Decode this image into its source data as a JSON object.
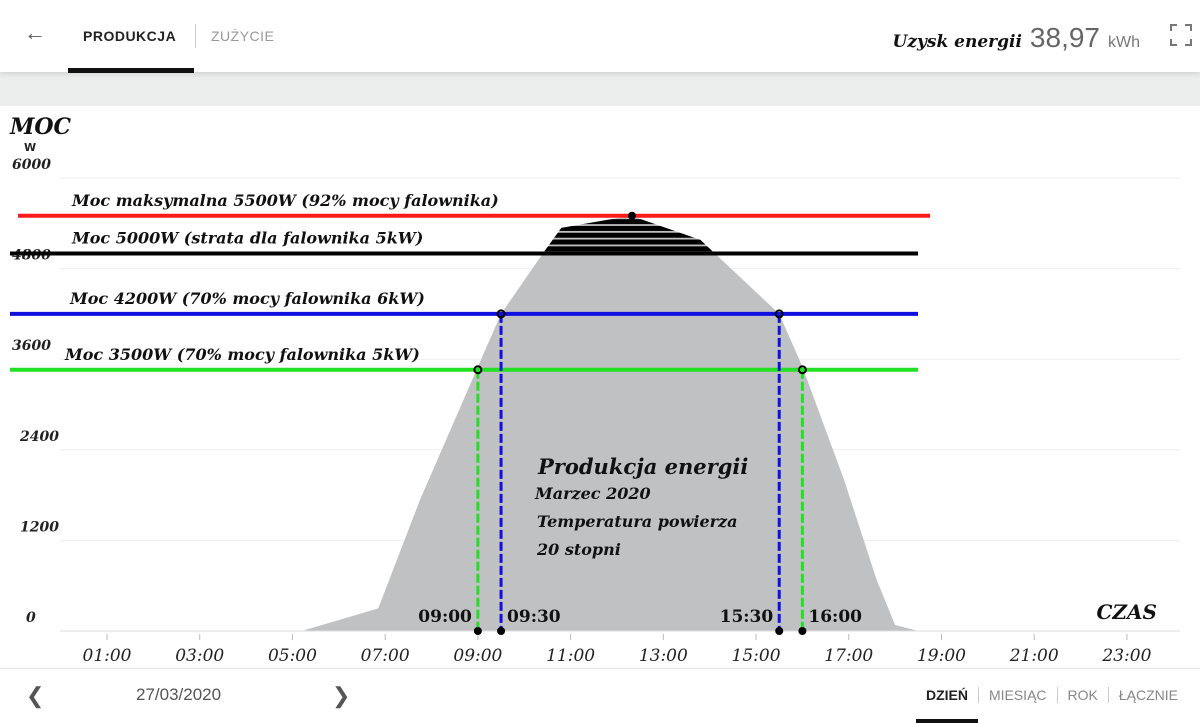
{
  "header": {
    "tabs": [
      {
        "label": "PRODUKCJA",
        "active": true
      },
      {
        "label": "ZUŻYCIE",
        "active": false
      }
    ],
    "yield_label": "Uzysk energii",
    "yield_value": "38,97",
    "yield_unit": "kWh"
  },
  "footer": {
    "date": "27/03/2020",
    "periods": [
      "DZIEŃ",
      "MIESIĄC",
      "ROK",
      "ŁĄCZNIE"
    ],
    "active_period": "DZIEŃ"
  },
  "chart_data": {
    "type": "area",
    "ylabel": "MOC",
    "yunit": "W",
    "xlabel": "CZAS",
    "ylim": [
      0,
      6000
    ],
    "yticks": [
      "0",
      "1200",
      "2400",
      "3600",
      "4800",
      "6000"
    ],
    "xlim": [
      0,
      24
    ],
    "xticks": [
      "01:00",
      "03:00",
      "05:00",
      "07:00",
      "09:00",
      "11:00",
      "13:00",
      "15:00",
      "17:00",
      "19:00",
      "21:00",
      "23:00"
    ],
    "grid": true,
    "series": [
      {
        "x": [
          5.2,
          6.85,
          7.75,
          9.0,
          9.5,
          10.4,
          10.8,
          12.3,
          13.8,
          15.5,
          16.0,
          16.9,
          17.6,
          18.0,
          18.5
        ],
        "y": [
          0,
          300,
          1735,
          3500,
          4200,
          5000,
          5340,
          5500,
          5180,
          4200,
          3500,
          2000,
          680,
          80,
          0
        ],
        "color": "#c0c1c2"
      }
    ],
    "reference_lines": [
      {
        "value": 5500,
        "label": "Moc maksymalna 5500W (92% mocy falownika)",
        "color": "#ff1a1a"
      },
      {
        "value": 5000,
        "label": "Moc 5000W (strata dla falownika 5kW)",
        "color": "#000000"
      },
      {
        "value": 4200,
        "label": "Moc 4200W (70% mocy falownika 6kW)",
        "color": "#1010e0"
      },
      {
        "value": 3500,
        "label": "Moc 3500W (70% mocy falownika 5kW)",
        "color": "#22e022"
      }
    ],
    "markers": [
      {
        "time": "09:00",
        "x": 9.0,
        "value": 3500,
        "color": "#22e022"
      },
      {
        "time": "09:30",
        "x": 9.5,
        "value": 4200,
        "color": "#1010e0"
      },
      {
        "time": "15:30",
        "x": 15.5,
        "value": 4200,
        "color": "#1010e0"
      },
      {
        "time": "16:00",
        "x": 16.0,
        "value": 3500,
        "color": "#22e022"
      }
    ],
    "annotation": {
      "title": "Produkcja energii",
      "lines": [
        "Marzec 2020",
        "Temperatura powierza",
        "20 stopni"
      ]
    }
  }
}
